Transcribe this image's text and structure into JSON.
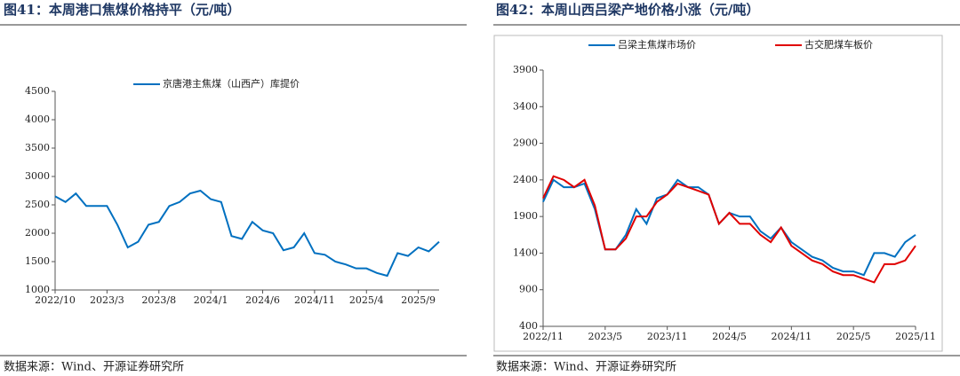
{
  "chart_data": [
    {
      "type": "line",
      "title": "图41：本周港口焦煤价格持平（元/吨）",
      "source": "数据来源：Wind、开源证券研究所",
      "categories": [
        "2022/10",
        null,
        null,
        null,
        null,
        "2023/3",
        null,
        null,
        null,
        null,
        "2023/8",
        null,
        null,
        null,
        null,
        "2024/1",
        null,
        null,
        null,
        null,
        "2024/6",
        null,
        null,
        null,
        null,
        "2024/11",
        null,
        null,
        null,
        null,
        "2025/4",
        null,
        null,
        null,
        null,
        "2025/9",
        null,
        null
      ],
      "series": [
        {
          "name": "京唐港主焦煤（山西产）库提价",
          "color": "#0070c0",
          "values": [
            2650,
            2550,
            2700,
            2480,
            2480,
            2480,
            2150,
            1750,
            1850,
            2150,
            2200,
            2480,
            2550,
            2700,
            2750,
            2600,
            2550,
            1950,
            1900,
            2200,
            2050,
            2000,
            1700,
            1750,
            2000,
            1650,
            1620,
            1500,
            1450,
            1380,
            1380,
            1300,
            1250,
            1650,
            1600,
            1750,
            1680,
            1850
          ]
        }
      ],
      "ylim": [
        1000,
        4500
      ],
      "yticks": [
        1000,
        1500,
        2000,
        2500,
        3000,
        3500,
        4000,
        4500
      ],
      "grid": false
    },
    {
      "type": "line",
      "title": "图42：本周山西吕梁产地价格小涨（元/吨）",
      "source": "数据来源：Wind、开源证券研究所",
      "categories": [
        "2022/11",
        null,
        null,
        null,
        null,
        null,
        "2023/5",
        null,
        null,
        null,
        null,
        null,
        "2023/11",
        null,
        null,
        null,
        null,
        null,
        "2024/5",
        null,
        null,
        null,
        null,
        null,
        "2024/11",
        null,
        null,
        null,
        null,
        null,
        "2025/5",
        null,
        null,
        null,
        null,
        null,
        "2025/11"
      ],
      "series": [
        {
          "name": "吕梁主焦煤市场价",
          "color": "#0070c0",
          "values": [
            2100,
            2400,
            2300,
            2300,
            2350,
            2000,
            1450,
            1450,
            1650,
            2000,
            1800,
            2150,
            2200,
            2400,
            2300,
            2300,
            2200,
            1800,
            1950,
            1900,
            1900,
            1700,
            1600,
            1750,
            1550,
            1450,
            1350,
            1300,
            1200,
            1150,
            1150,
            1100,
            1400,
            1400,
            1350,
            1550,
            1650
          ]
        },
        {
          "name": "古交肥煤车板价",
          "color": "#e00000",
          "values": [
            2150,
            2450,
            2400,
            2300,
            2400,
            2050,
            1450,
            1450,
            1600,
            1900,
            1900,
            2100,
            2200,
            2350,
            2300,
            2250,
            2200,
            1800,
            1950,
            1800,
            1800,
            1650,
            1550,
            1750,
            1500,
            1400,
            1300,
            1250,
            1150,
            1100,
            1100,
            1050,
            1000,
            1250,
            1250,
            1300,
            1500
          ]
        }
      ],
      "ylim": [
        400,
        3900
      ],
      "yticks": [
        400,
        900,
        1400,
        1900,
        2400,
        2900,
        3400,
        3900
      ],
      "grid": false
    }
  ]
}
